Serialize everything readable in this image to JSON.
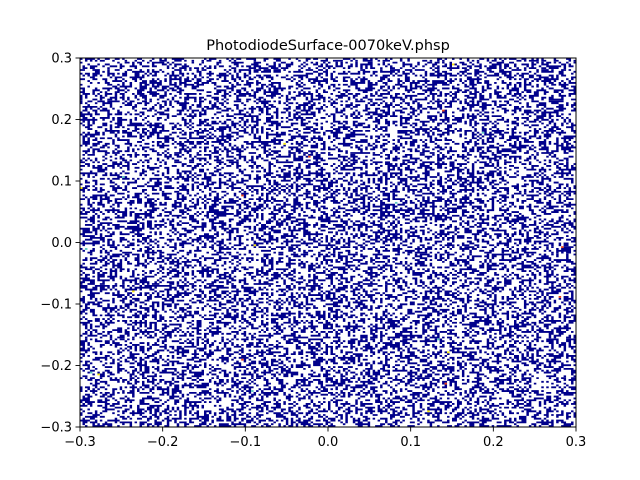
{
  "chart_data": {
    "type": "heatmap",
    "title": "PhotodiodeSurface-0070keV.phsp",
    "xlabel": "",
    "ylabel": "",
    "xlim": [
      -0.3,
      0.3
    ],
    "ylim": [
      -0.3,
      0.3
    ],
    "x_ticks": [
      -0.3,
      -0.2,
      -0.1,
      0.0,
      0.1,
      0.2,
      0.3
    ],
    "y_ticks": [
      -0.3,
      -0.2,
      -0.1,
      0.0,
      0.1,
      0.2,
      0.3
    ],
    "x_tick_labels": [
      "−0.3",
      "−0.2",
      "−0.1",
      "0.0",
      "0.1",
      "0.2",
      "0.3"
    ],
    "y_tick_labels": [
      "−0.3",
      "−0.2",
      "−0.1",
      "0.0",
      "0.1",
      "0.2",
      "0.3"
    ],
    "bins": [
      200,
      200
    ],
    "fill_fraction": 0.42,
    "dominant_color": "#00008b",
    "rare_colors": [
      "#f5e50a",
      "#e8401a",
      "#5bc8c0"
    ],
    "grid": false,
    "colormap": "jet"
  }
}
